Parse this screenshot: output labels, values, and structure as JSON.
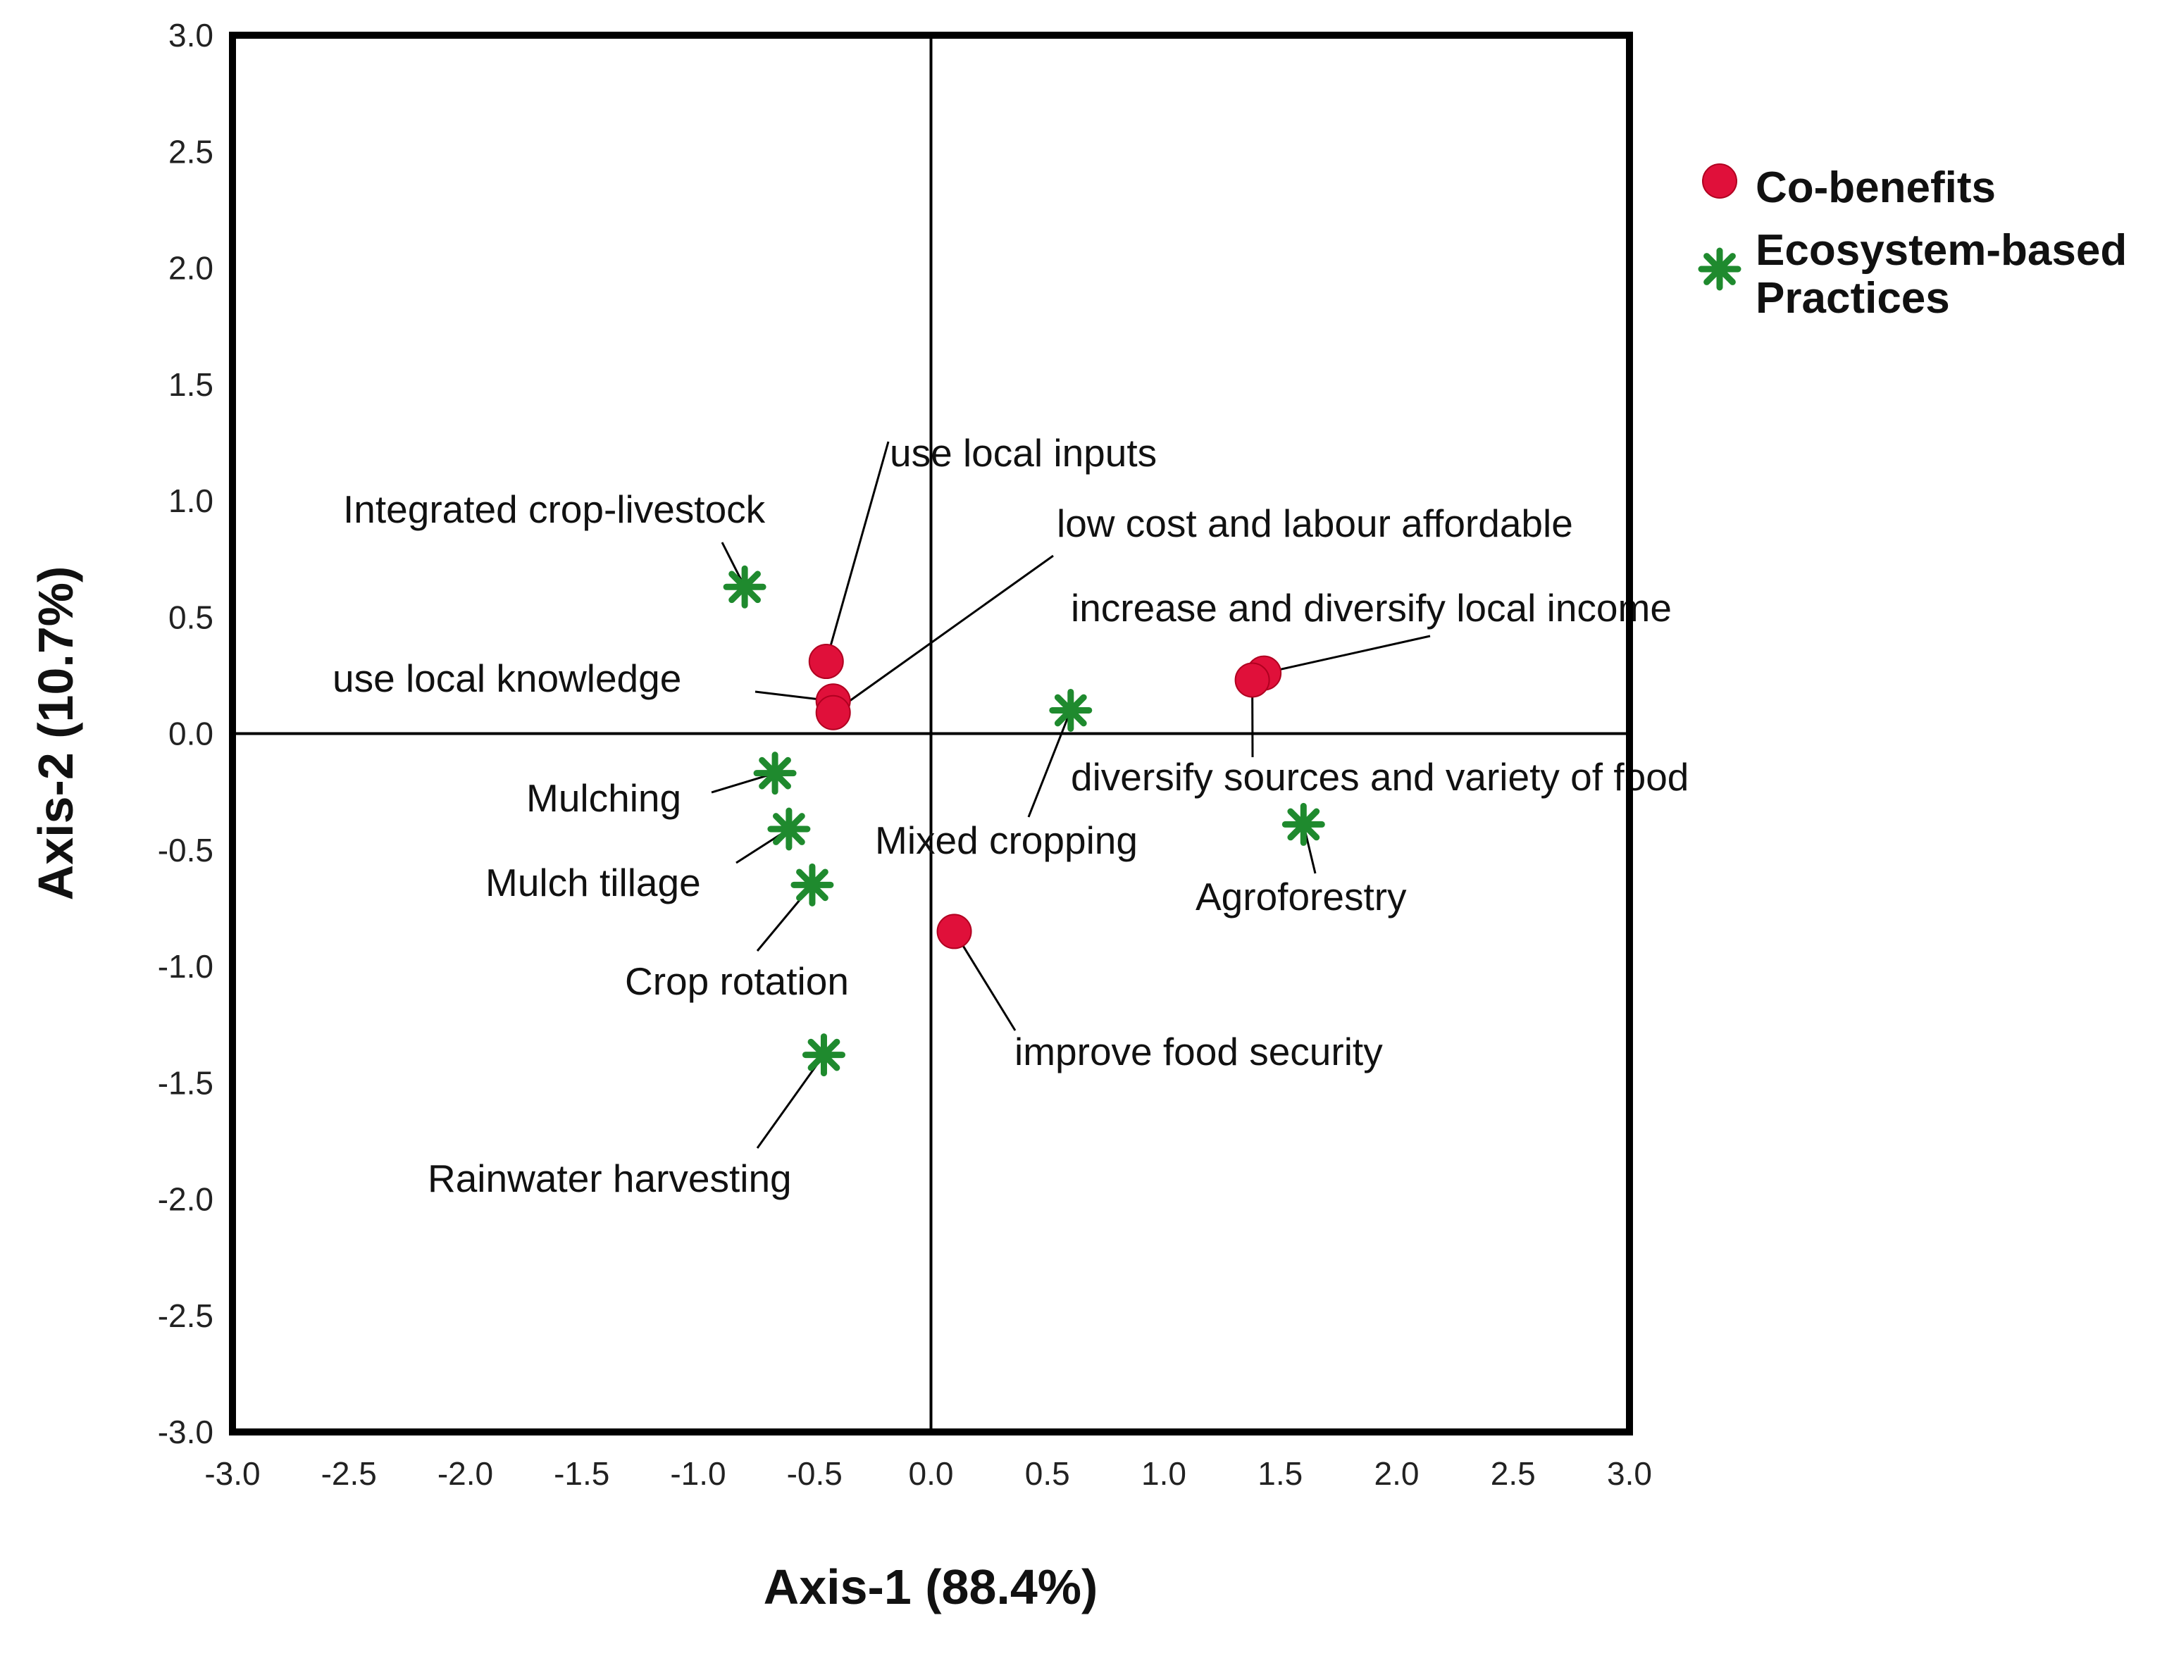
{
  "chart_data": {
    "type": "scatter",
    "xlabel": "Axis-1 (88.4%)",
    "ylabel": "Axis-2 (10.7%)",
    "xlim": [
      -3.0,
      3.0
    ],
    "ylim": [
      -3.0,
      3.0
    ],
    "x_ticks": [
      "-3.0",
      "-2.5",
      "-2.0",
      "-1.5",
      "-1.0",
      "-0.5",
      "0.0",
      "0.5",
      "1.0",
      "1.5",
      "2.0",
      "2.5",
      "3.0"
    ],
    "y_ticks": [
      "3.0",
      "2.5",
      "2.0",
      "1.5",
      "1.0",
      "0.5",
      "0.0",
      "-0.5",
      "-1.0",
      "-1.5",
      "-2.0",
      "-2.5",
      "-3.0"
    ],
    "grid": false,
    "reference_lines": {
      "x": 0,
      "y": 0
    },
    "legend_position": "right",
    "series": [
      {
        "name": "Co-benefits",
        "marker": "circle",
        "color": "#e0103a",
        "points": [
          {
            "label": "use local inputs",
            "x": -0.45,
            "y": 0.31
          },
          {
            "label": "use local knowledge",
            "x": -0.42,
            "y": 0.14
          },
          {
            "label": "low cost and labour affordable",
            "x": -0.42,
            "y": 0.09
          },
          {
            "label": "increase and diversify local income",
            "x": 1.43,
            "y": 0.26
          },
          {
            "label": "diversify sources and variety of food",
            "x": 1.38,
            "y": 0.23
          },
          {
            "label": "improve food security",
            "x": 0.1,
            "y": -0.85
          }
        ]
      },
      {
        "name": "Ecosystem-based Practices",
        "marker": "star",
        "color": "#1f8a2e",
        "points": [
          {
            "label": "Integrated crop-livestock",
            "x": -0.8,
            "y": 0.63
          },
          {
            "label": "Mulching",
            "x": -0.67,
            "y": -0.17
          },
          {
            "label": "Mulch tillage",
            "x": -0.61,
            "y": -0.41
          },
          {
            "label": "Crop rotation",
            "x": -0.51,
            "y": -0.65
          },
          {
            "label": "Rainwater harvesting",
            "x": -0.46,
            "y": -1.38
          },
          {
            "label": "Mixed cropping",
            "x": 0.6,
            "y": 0.1
          },
          {
            "label": "Agroforestry",
            "x": 1.6,
            "y": -0.39
          }
        ]
      }
    ]
  }
}
